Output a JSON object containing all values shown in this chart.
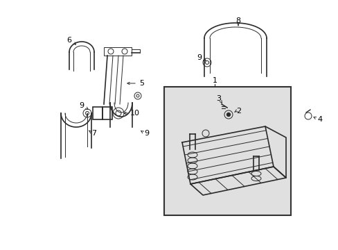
{
  "bg_color": "#ffffff",
  "line_color": "#2a2a2a",
  "box_bg": "#e0e0e0",
  "box_border": "#333333",
  "label_color": "#000000",
  "fig_width": 4.89,
  "fig_height": 3.6,
  "dpi": 100
}
